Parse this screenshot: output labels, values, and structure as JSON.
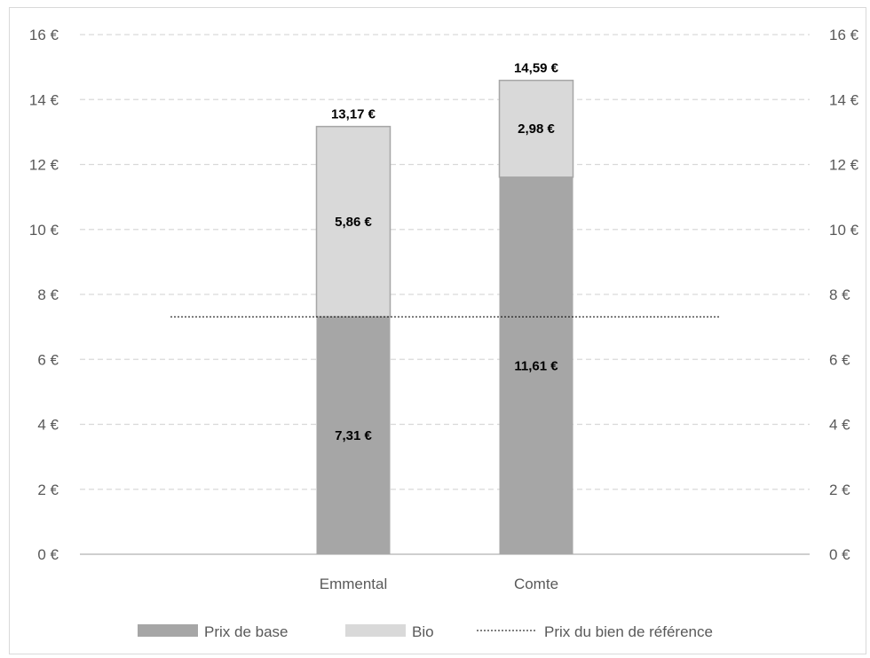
{
  "chart_data": {
    "type": "bar",
    "stacked": true,
    "categories": [
      "Emmental",
      "Comte"
    ],
    "series": [
      {
        "name": "Prix de base",
        "values": [
          7.31,
          11.61
        ],
        "labels": [
          "7,31 €",
          "11,61 €"
        ],
        "color": "#a6a6a6"
      },
      {
        "name": "Bio",
        "values": [
          5.86,
          2.98
        ],
        "labels": [
          "5,86 €",
          "2,98 €"
        ],
        "color": "#d9d9d9"
      }
    ],
    "totals": [
      13.17,
      14.59
    ],
    "total_labels": [
      "13,17 €",
      "14,59 €"
    ],
    "reference_line": {
      "name": "Prix du bien de référence",
      "value": 7.31,
      "style": "dotted",
      "color": "#000000"
    },
    "ylim": [
      0,
      16
    ],
    "y_ticks": [
      0,
      2,
      4,
      6,
      8,
      10,
      12,
      14,
      16
    ],
    "y_tick_labels": [
      "0 €",
      "2 €",
      "4 €",
      "6 €",
      "8 €",
      "10 €",
      "12 €",
      "14 €",
      "16 €"
    ],
    "secondary_y_axis": true,
    "grid": "dashed horizontal",
    "legend_position": "bottom",
    "title": "",
    "xlabel": "",
    "ylabel": ""
  }
}
